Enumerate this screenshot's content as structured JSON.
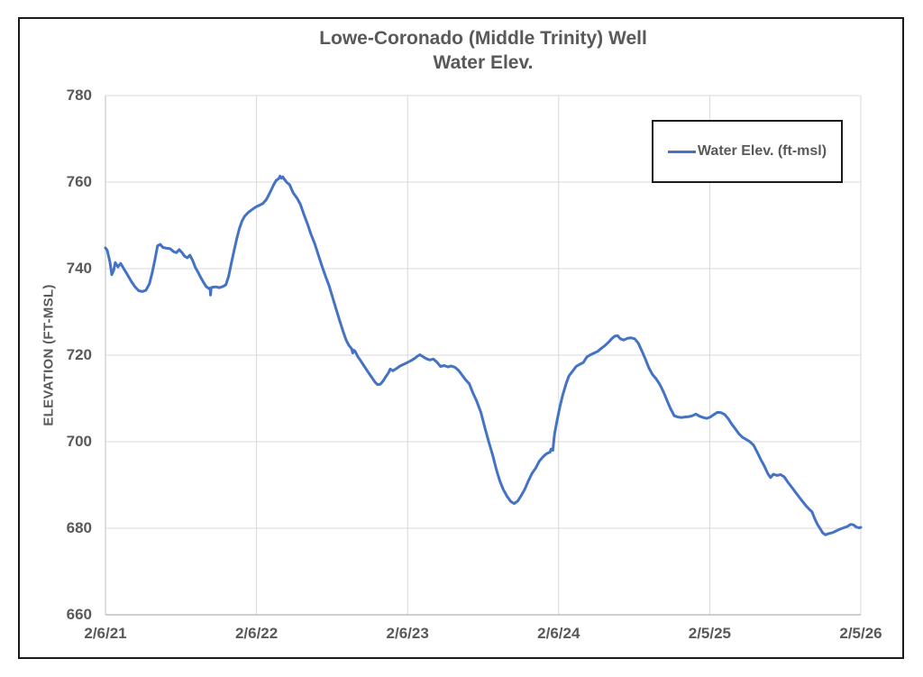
{
  "figure": {
    "title": "Lowe-Coronado (Middle Trinity) Well",
    "subtitle": "Water Elev.",
    "y_axis_title": "ELEVATION (FT-MSL)",
    "legend": {
      "label": "Water Elev. (ft-msl)"
    },
    "colors": {
      "line": "#4472C4",
      "text": "#595959",
      "gridline": "#D9D9D9",
      "axis_line": "#BFBFBF",
      "border": "#1a1a1a",
      "background": "#FFFFFF"
    }
  },
  "chart_data": {
    "type": "line",
    "title": "Lowe-Coronado (Middle Trinity) Well",
    "subtitle": "Water Elev.",
    "xlabel": "",
    "ylabel": "ELEVATION (FT-MSL)",
    "ylim": [
      660,
      780
    ],
    "y_ticks": [
      660,
      680,
      700,
      720,
      740,
      760,
      780
    ],
    "x_tick_labels": [
      "2/6/21",
      "2/6/22",
      "2/6/23",
      "2/6/24",
      "2/5/25",
      "2/5/26"
    ],
    "x_range_years": [
      0,
      5
    ],
    "grid": true,
    "legend_position": "inside-top-right",
    "series": [
      {
        "name": "Water Elev. (ft-msl)",
        "color": "#4472C4",
        "x_unit": "years since 2/6/21",
        "y_unit": "ft-msl",
        "points": [
          [
            0.0,
            744.8
          ],
          [
            0.012,
            744.2
          ],
          [
            0.03,
            741.5
          ],
          [
            0.042,
            738.6
          ],
          [
            0.054,
            739.6
          ],
          [
            0.065,
            741.4
          ],
          [
            0.083,
            740.4
          ],
          [
            0.101,
            741.2
          ],
          [
            0.125,
            739.8
          ],
          [
            0.149,
            738.4
          ],
          [
            0.172,
            737.0
          ],
          [
            0.196,
            735.8
          ],
          [
            0.22,
            734.9
          ],
          [
            0.244,
            734.7
          ],
          [
            0.268,
            735.0
          ],
          [
            0.291,
            736.5
          ],
          [
            0.309,
            739.0
          ],
          [
            0.327,
            742.0
          ],
          [
            0.345,
            745.3
          ],
          [
            0.363,
            745.6
          ],
          [
            0.38,
            744.9
          ],
          [
            0.404,
            744.7
          ],
          [
            0.428,
            744.6
          ],
          [
            0.452,
            743.9
          ],
          [
            0.47,
            743.7
          ],
          [
            0.488,
            744.4
          ],
          [
            0.505,
            743.8
          ],
          [
            0.523,
            742.9
          ],
          [
            0.541,
            742.5
          ],
          [
            0.559,
            743.1
          ],
          [
            0.577,
            741.9
          ],
          [
            0.595,
            740.3
          ],
          [
            0.612,
            739.2
          ],
          [
            0.63,
            738.0
          ],
          [
            0.648,
            736.9
          ],
          [
            0.666,
            735.9
          ],
          [
            0.684,
            735.4
          ],
          [
            0.693,
            735.5
          ],
          [
            0.696,
            733.9
          ],
          [
            0.699,
            735.5
          ],
          [
            0.707,
            735.7
          ],
          [
            0.731,
            735.8
          ],
          [
            0.755,
            735.6
          ],
          [
            0.779,
            735.9
          ],
          [
            0.797,
            736.3
          ],
          [
            0.815,
            738.2
          ],
          [
            0.832,
            741.0
          ],
          [
            0.85,
            744.0
          ],
          [
            0.868,
            746.8
          ],
          [
            0.886,
            749.2
          ],
          [
            0.904,
            751.0
          ],
          [
            0.921,
            752.1
          ],
          [
            0.945,
            753.0
          ],
          [
            0.969,
            753.6
          ],
          [
            0.993,
            754.2
          ],
          [
            1.017,
            754.6
          ],
          [
            1.04,
            755.0
          ],
          [
            1.064,
            755.9
          ],
          [
            1.088,
            757.5
          ],
          [
            1.112,
            759.3
          ],
          [
            1.13,
            760.4
          ],
          [
            1.147,
            760.8
          ],
          [
            1.156,
            761.4
          ],
          [
            1.165,
            760.9
          ],
          [
            1.174,
            761.2
          ],
          [
            1.183,
            760.7
          ],
          [
            1.201,
            759.9
          ],
          [
            1.219,
            759.4
          ],
          [
            1.243,
            757.5
          ],
          [
            1.266,
            756.4
          ],
          [
            1.29,
            754.9
          ],
          [
            1.314,
            752.5
          ],
          [
            1.338,
            750.3
          ],
          [
            1.361,
            747.9
          ],
          [
            1.385,
            745.8
          ],
          [
            1.409,
            743.2
          ],
          [
            1.433,
            740.6
          ],
          [
            1.457,
            738.2
          ],
          [
            1.48,
            736.1
          ],
          [
            1.504,
            733.3
          ],
          [
            1.528,
            730.5
          ],
          [
            1.552,
            727.8
          ],
          [
            1.576,
            725.2
          ],
          [
            1.593,
            723.5
          ],
          [
            1.611,
            722.3
          ],
          [
            1.629,
            721.5
          ],
          [
            1.637,
            720.5
          ],
          [
            1.641,
            721.2
          ],
          [
            1.653,
            720.9
          ],
          [
            1.671,
            719.6
          ],
          [
            1.688,
            718.8
          ],
          [
            1.712,
            717.5
          ],
          [
            1.736,
            716.2
          ],
          [
            1.76,
            715.0
          ],
          [
            1.784,
            713.8
          ],
          [
            1.801,
            713.2
          ],
          [
            1.819,
            713.3
          ],
          [
            1.837,
            714.0
          ],
          [
            1.855,
            715.0
          ],
          [
            1.873,
            715.9
          ],
          [
            1.885,
            716.8
          ],
          [
            1.902,
            716.4
          ],
          [
            1.926,
            716.9
          ],
          [
            1.95,
            717.5
          ],
          [
            1.974,
            717.9
          ],
          [
            1.998,
            718.3
          ],
          [
            2.021,
            718.7
          ],
          [
            2.045,
            719.2
          ],
          [
            2.063,
            719.7
          ],
          [
            2.081,
            720.1
          ],
          [
            2.099,
            719.7
          ],
          [
            2.123,
            719.2
          ],
          [
            2.146,
            718.9
          ],
          [
            2.17,
            719.1
          ],
          [
            2.194,
            718.4
          ],
          [
            2.218,
            717.4
          ],
          [
            2.242,
            717.6
          ],
          [
            2.266,
            717.3
          ],
          [
            2.289,
            717.5
          ],
          [
            2.313,
            717.2
          ],
          [
            2.337,
            716.5
          ],
          [
            2.361,
            715.4
          ],
          [
            2.384,
            714.3
          ],
          [
            2.408,
            713.4
          ],
          [
            2.432,
            711.3
          ],
          [
            2.456,
            709.5
          ],
          [
            2.485,
            706.8
          ],
          [
            2.515,
            702.8
          ],
          [
            2.539,
            699.8
          ],
          [
            2.563,
            696.9
          ],
          [
            2.586,
            693.8
          ],
          [
            2.61,
            691.0
          ],
          [
            2.634,
            688.9
          ],
          [
            2.658,
            687.4
          ],
          [
            2.682,
            686.2
          ],
          [
            2.705,
            685.7
          ],
          [
            2.729,
            686.3
          ],
          [
            2.753,
            687.6
          ],
          [
            2.777,
            689.1
          ],
          [
            2.8,
            691.0
          ],
          [
            2.824,
            692.7
          ],
          [
            2.848,
            693.9
          ],
          [
            2.872,
            695.5
          ],
          [
            2.896,
            696.5
          ],
          [
            2.919,
            697.2
          ],
          [
            2.943,
            697.6
          ],
          [
            2.949,
            698.3
          ],
          [
            2.961,
            698.0
          ],
          [
            2.973,
            701.9
          ],
          [
            2.991,
            705.2
          ],
          [
            3.009,
            708.2
          ],
          [
            3.027,
            710.8
          ],
          [
            3.05,
            713.5
          ],
          [
            3.068,
            715.2
          ],
          [
            3.092,
            716.3
          ],
          [
            3.116,
            717.4
          ],
          [
            3.14,
            717.9
          ],
          [
            3.163,
            718.3
          ],
          [
            3.187,
            719.6
          ],
          [
            3.211,
            720.1
          ],
          [
            3.235,
            720.5
          ],
          [
            3.259,
            720.9
          ],
          [
            3.283,
            721.6
          ],
          [
            3.306,
            722.2
          ],
          [
            3.33,
            723.0
          ],
          [
            3.354,
            723.9
          ],
          [
            3.372,
            724.4
          ],
          [
            3.39,
            724.5
          ],
          [
            3.408,
            723.8
          ],
          [
            3.431,
            723.5
          ],
          [
            3.455,
            723.9
          ],
          [
            3.479,
            724.0
          ],
          [
            3.503,
            723.8
          ],
          [
            3.527,
            722.8
          ],
          [
            3.551,
            721.0
          ],
          [
            3.575,
            719.0
          ],
          [
            3.598,
            717.0
          ],
          [
            3.622,
            715.5
          ],
          [
            3.646,
            714.5
          ],
          [
            3.67,
            713.2
          ],
          [
            3.694,
            711.5
          ],
          [
            3.718,
            709.5
          ],
          [
            3.741,
            707.6
          ],
          [
            3.765,
            706.0
          ],
          [
            3.789,
            705.7
          ],
          [
            3.813,
            705.6
          ],
          [
            3.837,
            705.7
          ],
          [
            3.861,
            705.8
          ],
          [
            3.885,
            706.0
          ],
          [
            3.908,
            706.4
          ],
          [
            3.932,
            705.9
          ],
          [
            3.956,
            705.6
          ],
          [
            3.98,
            705.4
          ],
          [
            4.004,
            705.7
          ],
          [
            4.028,
            706.3
          ],
          [
            4.051,
            706.8
          ],
          [
            4.075,
            706.7
          ],
          [
            4.099,
            706.3
          ],
          [
            4.123,
            705.3
          ],
          [
            4.147,
            704.0
          ],
          [
            4.171,
            702.9
          ],
          [
            4.194,
            701.8
          ],
          [
            4.218,
            701.0
          ],
          [
            4.242,
            700.5
          ],
          [
            4.266,
            700.0
          ],
          [
            4.29,
            699.2
          ],
          [
            4.314,
            697.6
          ],
          [
            4.338,
            695.9
          ],
          [
            4.361,
            694.4
          ],
          [
            4.385,
            692.6
          ],
          [
            4.403,
            691.7
          ],
          [
            4.421,
            692.5
          ],
          [
            4.445,
            692.2
          ],
          [
            4.469,
            692.4
          ],
          [
            4.492,
            691.9
          ],
          [
            4.516,
            690.7
          ],
          [
            4.54,
            689.6
          ],
          [
            4.564,
            688.5
          ],
          [
            4.588,
            687.4
          ],
          [
            4.612,
            686.3
          ],
          [
            4.635,
            685.3
          ],
          [
            4.659,
            684.4
          ],
          [
            4.677,
            683.8
          ],
          [
            4.695,
            682.2
          ],
          [
            4.713,
            680.9
          ],
          [
            4.731,
            679.9
          ],
          [
            4.749,
            678.9
          ],
          [
            4.766,
            678.5
          ],
          [
            4.79,
            678.8
          ],
          [
            4.814,
            679.0
          ],
          [
            4.838,
            679.4
          ],
          [
            4.862,
            679.8
          ],
          [
            4.886,
            680.1
          ],
          [
            4.91,
            680.4
          ],
          [
            4.933,
            680.9
          ],
          [
            4.951,
            680.8
          ],
          [
            4.969,
            680.3
          ],
          [
            4.987,
            680.1
          ],
          [
            5.0,
            680.2
          ]
        ]
      }
    ]
  }
}
